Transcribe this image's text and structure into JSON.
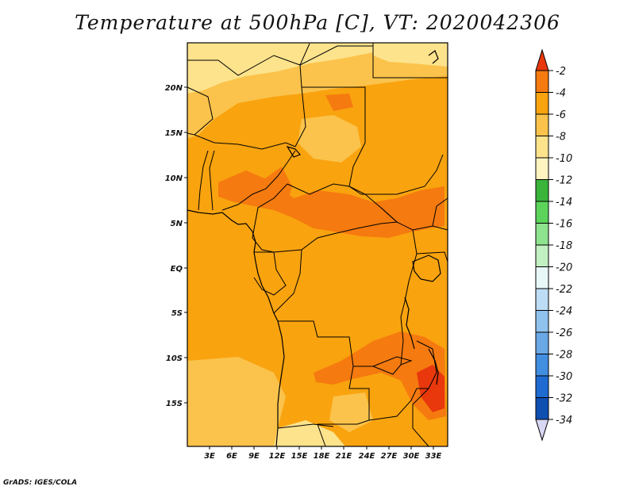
{
  "title": "Temperature at 500hPa [C], VT: 2020042306",
  "credit": "GrADS: IGES/COLA",
  "map": {
    "lat_labels": [
      "20N",
      "15N",
      "10N",
      "5N",
      "EQ",
      "5S",
      "10S",
      "15S"
    ],
    "lon_labels": [
      "3E",
      "6E",
      "9E",
      "12E",
      "15E",
      "18E",
      "21E",
      "24E",
      "27E",
      "30E",
      "33E"
    ],
    "field_colors": {
      "minus_8_to_minus_6": "#fbc34b",
      "minus_6_to_minus_4": "#f9a30f",
      "minus_4_to_minus_2": "#f57a0f",
      "minus_10_to_minus_8": "#fde38c",
      "minus_12_to_minus_10": "#fff3c0"
    }
  },
  "colorbar": {
    "labels": [
      "-2",
      "-4",
      "-6",
      "-8",
      "-10",
      "-12",
      "-14",
      "-16",
      "-18",
      "-20",
      "-22",
      "-24",
      "-26",
      "-28",
      "-30",
      "-32",
      "-34"
    ],
    "colors": [
      "#e8380c",
      "#f57a0f",
      "#f9a30f",
      "#fbc34b",
      "#fde38c",
      "#fff3c0",
      "#3ab43a",
      "#5cd45c",
      "#8ee38e",
      "#c2f0c2",
      "#e8f8f8",
      "#bddcf5",
      "#90c2ee",
      "#6aa8e6",
      "#428ee0",
      "#1f6bd1",
      "#0f4fb2",
      "#0e2f8f",
      "#0a1a66",
      "#d8d8f4"
    ]
  }
}
